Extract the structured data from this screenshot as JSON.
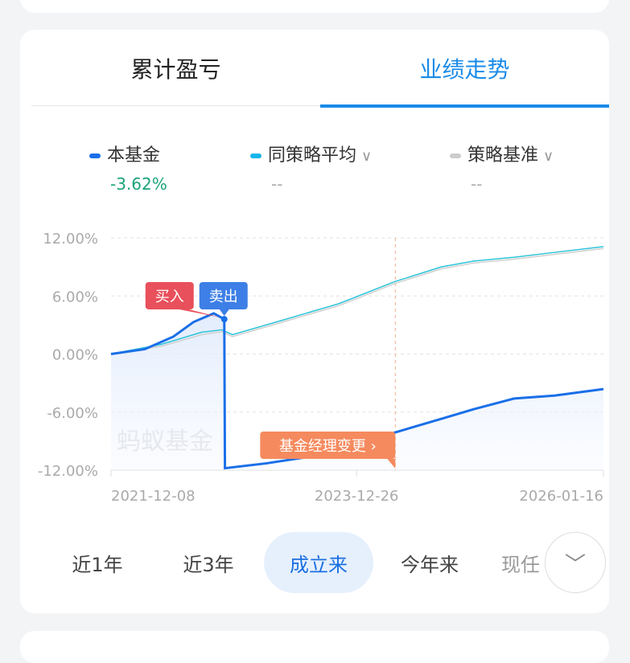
{
  "tabs": [
    {
      "label": "累计盈亏",
      "active": false
    },
    {
      "label": "业绩走势",
      "active": true
    }
  ],
  "legend": [
    {
      "name": "本基金",
      "value": "-3.62%",
      "color": "#1a6fe8",
      "value_color": "#1aa37a",
      "has_dropdown": false
    },
    {
      "name": "同策略平均",
      "value": "--",
      "color": "#15b5ea",
      "value_color": "#aaaaaa",
      "has_dropdown": true
    },
    {
      "name": "策略基准",
      "value": "--",
      "color": "#cccccc",
      "value_color": "#aaaaaa",
      "has_dropdown": true
    }
  ],
  "chart_data": {
    "type": "line",
    "ylim": [
      -12,
      12
    ],
    "yticks": [
      12,
      6,
      0,
      -6,
      -12
    ],
    "ytick_labels": [
      "12.00%",
      "6.00%",
      "0.00%",
      "-6.00%",
      "-12.00%"
    ],
    "xlim": [
      "2021-12-08",
      "2026-01-16"
    ],
    "xtick_labels": [
      "2021-12-08",
      "2023-12-26",
      "2026-01-16"
    ],
    "grid": true,
    "watermark": "蚂蚁基金",
    "series": [
      {
        "name": "本基金",
        "color": "#1a6fe8",
        "points": [
          [
            "2021-12-08",
            0
          ],
          [
            "2022-03-21",
            0.5
          ],
          [
            "2022-06-16",
            1.8
          ],
          [
            "2022-08-16",
            3.3
          ],
          [
            "2022-10-17",
            4.2
          ],
          [
            "2022-11-18",
            3.6
          ],
          [
            "2022-11-20",
            -11.8
          ],
          [
            "2023-03-26",
            -11.3
          ],
          [
            "2023-09-14",
            -10.4
          ],
          [
            "2024-04-22",
            -8.1
          ],
          [
            "2024-09-09",
            -6.7
          ],
          [
            "2024-12-17",
            -5.7
          ],
          [
            "2025-04-19",
            -4.6
          ],
          [
            "2025-08-20",
            -4.3
          ],
          [
            "2026-01-16",
            -3.62
          ]
        ]
      },
      {
        "name": "同策略平均",
        "color": "#2cc3d8",
        "points": [
          [
            "2021-12-08",
            0
          ],
          [
            "2022-05-10",
            1.0
          ],
          [
            "2022-09-10",
            2.25
          ],
          [
            "2022-11-10",
            2.5
          ],
          [
            "2022-12-13",
            2.0
          ],
          [
            "2023-05-15",
            3.5
          ],
          [
            "2023-11-02",
            5.2
          ],
          [
            "2024-04-22",
            7.5
          ],
          [
            "2024-09-09",
            9.0
          ],
          [
            "2024-12-17",
            9.6
          ],
          [
            "2025-04-19",
            10.0
          ],
          [
            "2025-08-20",
            10.5
          ],
          [
            "2026-01-16",
            11.1
          ]
        ]
      },
      {
        "name": "策略基准",
        "color": "#cfcfcf",
        "points": [
          [
            "2021-12-08",
            0
          ],
          [
            "2022-05-10",
            0.8
          ],
          [
            "2022-09-10",
            2.0
          ],
          [
            "2022-11-10",
            2.3
          ],
          [
            "2022-12-13",
            1.8
          ],
          [
            "2023-05-15",
            3.3
          ],
          [
            "2023-11-02",
            5.0
          ],
          [
            "2024-04-22",
            7.3
          ],
          [
            "2024-09-09",
            8.8
          ],
          [
            "2024-12-17",
            9.4
          ],
          [
            "2025-04-19",
            9.8
          ],
          [
            "2025-08-20",
            10.3
          ],
          [
            "2026-01-16",
            10.9
          ]
        ]
      }
    ],
    "annotations": [
      {
        "label": "买入",
        "date": "2022-11-18",
        "color": "#e8505b"
      },
      {
        "label": "卖出",
        "date": "2022-11-18",
        "color": "#3d7fe6"
      },
      {
        "label": "基金经理变更 ›",
        "date": "2024-04-22",
        "color": "#f58a5e"
      }
    ]
  },
  "periods": [
    {
      "label": "近1年"
    },
    {
      "label": "近3年"
    },
    {
      "label": "成立来",
      "active": true
    },
    {
      "label": "今年来"
    },
    {
      "label": "现任"
    }
  ],
  "more_icon": "chevron-down-icon"
}
